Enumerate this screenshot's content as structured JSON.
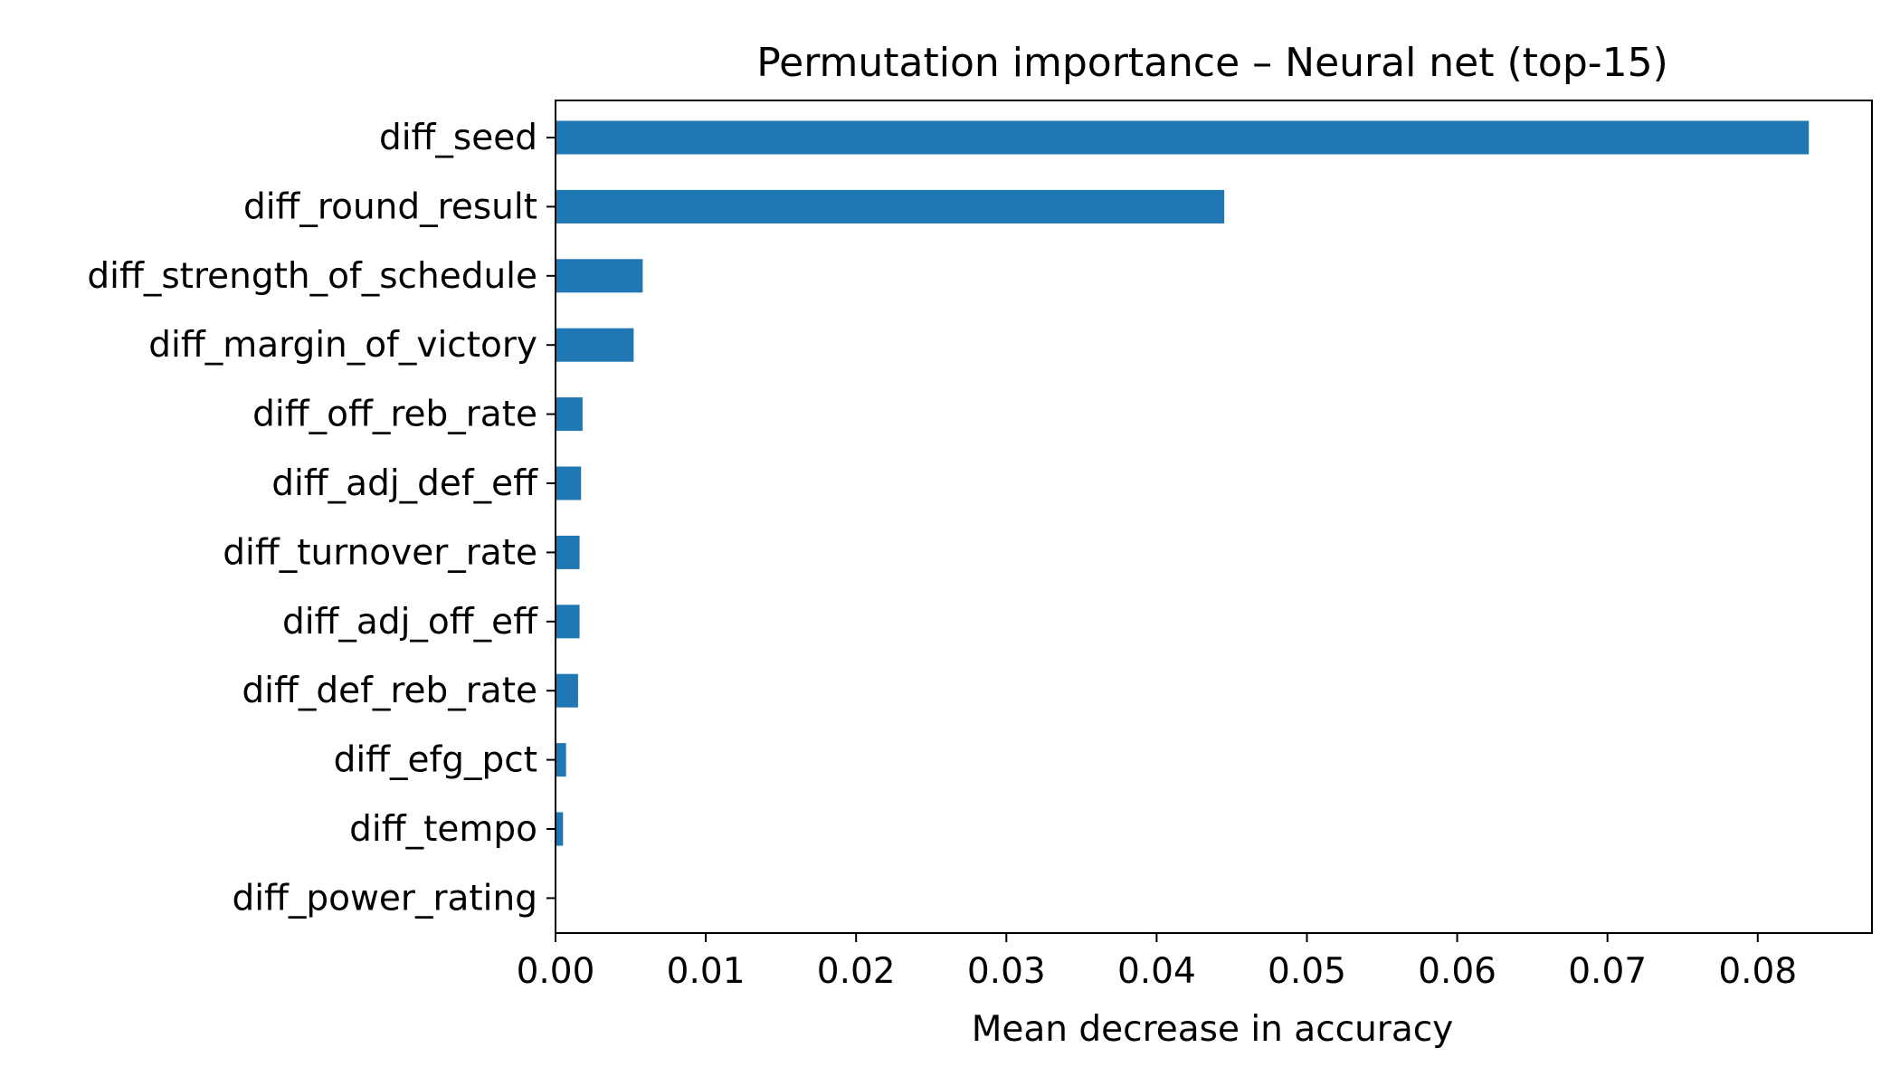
{
  "chart_data": {
    "type": "bar",
    "orientation": "horizontal",
    "title": "Permutation importance – Neural net (top-15)",
    "xlabel": "Mean decrease in accuracy",
    "ylabel": "",
    "categories": [
      "diff_seed",
      "diff_round_result",
      "diff_strength_of_schedule",
      "diff_margin_of_victory",
      "diff_off_reb_rate",
      "diff_adj_def_eff",
      "diff_turnover_rate",
      "diff_adj_off_eff",
      "diff_def_reb_rate",
      "diff_efg_pct",
      "diff_tempo",
      "diff_power_rating"
    ],
    "values": [
      0.0834,
      0.0445,
      0.0058,
      0.0052,
      0.0018,
      0.0017,
      0.0016,
      0.0016,
      0.0015,
      0.0007,
      0.0005,
      0.0
    ],
    "xlim": [
      0,
      0.0876
    ],
    "xticks": [
      0.0,
      0.01,
      0.02,
      0.03,
      0.04,
      0.05,
      0.06,
      0.07,
      0.08
    ],
    "xtick_labels": [
      "0.00",
      "0.01",
      "0.02",
      "0.03",
      "0.04",
      "0.05",
      "0.06",
      "0.07",
      "0.08"
    ],
    "bar_color": "#1f77b4",
    "grid": false,
    "legend": "none"
  }
}
